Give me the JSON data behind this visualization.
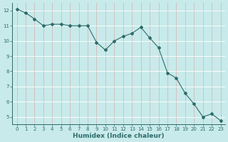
{
  "x": [
    0,
    1,
    2,
    3,
    4,
    5,
    6,
    7,
    8,
    9,
    10,
    11,
    12,
    13,
    14,
    15,
    16,
    17,
    18,
    19,
    20,
    21,
    22,
    23
  ],
  "y": [
    12.1,
    11.85,
    11.45,
    11.0,
    11.1,
    11.1,
    11.0,
    11.0,
    11.0,
    9.9,
    9.4,
    10.0,
    10.3,
    10.5,
    10.9,
    10.2,
    9.55,
    7.9,
    7.55,
    6.55,
    5.85,
    5.0,
    5.2,
    4.75
  ],
  "line_color": "#2e6b6b",
  "marker": "D",
  "marker_size": 2.0,
  "bg_color": "#c8eaea",
  "grid_color_v": "#d4b8b8",
  "grid_color_h": "#ffffff",
  "xlabel": "Humidex (Indice chaleur)",
  "xlim": [
    -0.5,
    23.5
  ],
  "ylim": [
    4.5,
    12.5
  ],
  "yticks": [
    5,
    6,
    7,
    8,
    9,
    10,
    11,
    12
  ],
  "xticks": [
    0,
    1,
    2,
    3,
    4,
    5,
    6,
    7,
    8,
    9,
    10,
    11,
    12,
    13,
    14,
    15,
    16,
    17,
    18,
    19,
    20,
    21,
    22,
    23
  ],
  "label_color": "#2e6b6b",
  "tick_color": "#2e6b6b",
  "axis_color": "#2e6b6b",
  "tick_fontsize": 5.0,
  "xlabel_fontsize": 6.5
}
